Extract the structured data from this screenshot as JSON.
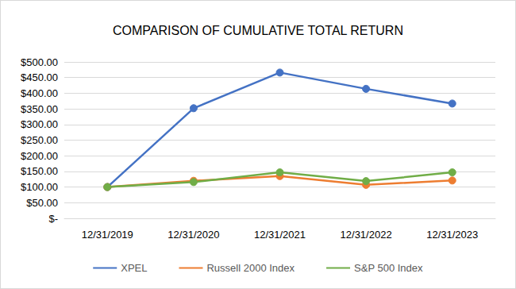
{
  "chart_data": {
    "type": "line",
    "title": "COMPARISON OF CUMULATIVE TOTAL RETURN",
    "categories": [
      "12/31/2019",
      "12/31/2020",
      "12/31/2021",
      "12/31/2022",
      "12/31/2023"
    ],
    "series": [
      {
        "name": "XPEL",
        "color": "#4472c4",
        "values": [
          100,
          352,
          466,
          414,
          367
        ]
      },
      {
        "name": "Russell 2000 Index",
        "color": "#ed7d31",
        "values": [
          100,
          120,
          135,
          107,
          121
        ]
      },
      {
        "name": "S&P 500 Index",
        "color": "#70ad47",
        "values": [
          100,
          116,
          147,
          119,
          147
        ]
      }
    ],
    "ylim": [
      0,
      500
    ],
    "yticks": [
      {
        "value": 0,
        "label": "$-"
      },
      {
        "value": 50,
        "label": "$50.00"
      },
      {
        "value": 100,
        "label": "$100.00"
      },
      {
        "value": 150,
        "label": "$150.00"
      },
      {
        "value": 200,
        "label": "$200.00"
      },
      {
        "value": 250,
        "label": "$250.00"
      },
      {
        "value": 300,
        "label": "$300.00"
      },
      {
        "value": 350,
        "label": "$350.00"
      },
      {
        "value": 400,
        "label": "$400.00"
      },
      {
        "value": 450,
        "label": "$450.00"
      },
      {
        "value": 500,
        "label": "$500.00"
      }
    ],
    "grid": true,
    "legend": "bottom",
    "marker": "circle"
  }
}
